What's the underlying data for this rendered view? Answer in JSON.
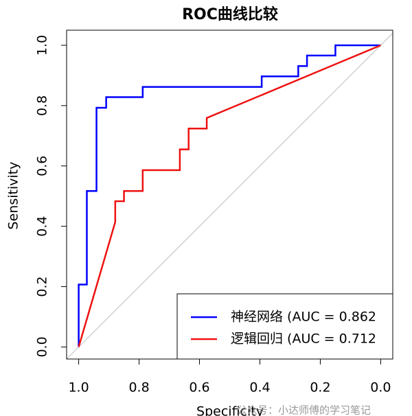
{
  "chart_data": {
    "type": "line",
    "title": "ROC曲线比较",
    "x_label": "Specificity",
    "y_label": "Sensitivity",
    "watermark": "公众号：小达师傅的学习笔记",
    "xlim": [
      1.04,
      -0.04
    ],
    "ylim": [
      -0.04,
      1.05
    ],
    "xticks": [
      {
        "value": 1.0,
        "label": "1.0"
      },
      {
        "value": 0.8,
        "label": "0.8"
      },
      {
        "value": 0.6,
        "label": "0.6"
      },
      {
        "value": 0.4,
        "label": "0.4"
      },
      {
        "value": 0.2,
        "label": "0.2"
      },
      {
        "value": 0.0,
        "label": "0.0"
      }
    ],
    "yticks": [
      {
        "value": 0.0,
        "label": "0.0"
      },
      {
        "value": 0.2,
        "label": "0.2"
      },
      {
        "value": 0.4,
        "label": "0.4"
      },
      {
        "value": 0.6,
        "label": "0.6"
      },
      {
        "value": 0.8,
        "label": "0.8"
      },
      {
        "value": 1.0,
        "label": "1.0"
      }
    ],
    "reference_line_color": "#bebebe",
    "legend_position": "bottom-right",
    "series": [
      {
        "name": "神经网络 (AUC = 0.862",
        "color": "#0000ff",
        "x": [
          1,
          1,
          0.973,
          0.973,
          0.941,
          0.941,
          0.909,
          0.909,
          0.788,
          0.788,
          0.394,
          0.394,
          0.273,
          0.273,
          0.244,
          0.244,
          0.15,
          0.15,
          0
        ],
        "values": [
          0,
          0.207,
          0.207,
          0.517,
          0.517,
          0.793,
          0.793,
          0.828,
          0.828,
          0.862,
          0.862,
          0.897,
          0.897,
          0.931,
          0.931,
          0.966,
          0.966,
          1,
          1
        ]
      },
      {
        "name": "逻辑回归 (AUC = 0.712",
        "color": "#ee1111",
        "x": [
          1,
          0.879,
          0.879,
          0.85,
          0.85,
          0.788,
          0.788,
          0.665,
          0.665,
          0.636,
          0.636,
          0.576,
          0.576,
          0
        ],
        "values": [
          0,
          0.414,
          0.483,
          0.483,
          0.517,
          0.517,
          0.586,
          0.586,
          0.655,
          0.655,
          0.724,
          0.724,
          0.759,
          1
        ]
      }
    ]
  }
}
